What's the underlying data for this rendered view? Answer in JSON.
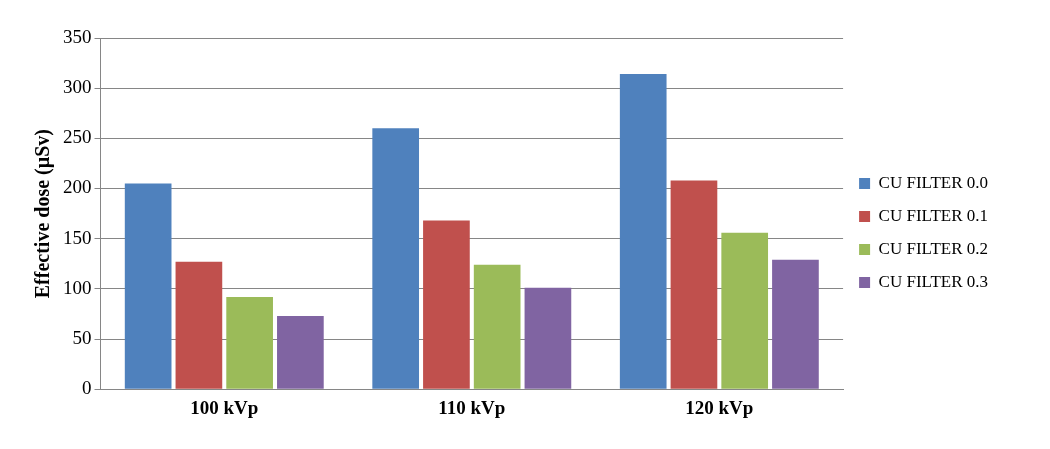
{
  "chart_data": {
    "type": "bar",
    "ylabel": "Effective dose (µSv)",
    "categories": [
      "100 kVp",
      "110 kVp",
      "120 kVp"
    ],
    "series": [
      {
        "name": "CU FILTER 0.0",
        "color": "#4f81bd",
        "values": [
          205,
          260,
          314
        ]
      },
      {
        "name": "CU FILTER 0.1",
        "color": "#c0504d",
        "values": [
          127,
          168,
          208
        ]
      },
      {
        "name": "CU FILTER 0.2",
        "color": "#9bbb59",
        "values": [
          92,
          124,
          156
        ]
      },
      {
        "name": "CU FILTER 0.3",
        "color": "#8064a2",
        "values": [
          73,
          101,
          129
        ]
      }
    ],
    "ylim": [
      0,
      350
    ],
    "yticks": [
      0,
      50,
      100,
      150,
      200,
      250,
      300,
      350
    ],
    "grid": "y",
    "legend": "right"
  }
}
